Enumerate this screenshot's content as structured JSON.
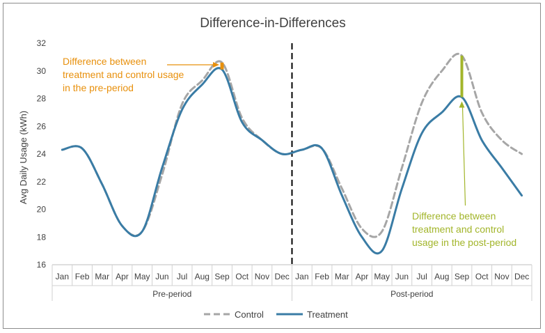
{
  "chart_data": {
    "type": "line",
    "title": "Difference-in-Differences",
    "ylabel": "Avg Daily Usage (kWh)",
    "xlabel": "",
    "ylim": [
      16,
      32
    ],
    "yticks": [
      16,
      18,
      20,
      22,
      24,
      26,
      28,
      30,
      32
    ],
    "categories": [
      "Jan",
      "Feb",
      "Mar",
      "Apr",
      "May",
      "Jun",
      "Jul",
      "Aug",
      "Sep",
      "Oct",
      "Nov",
      "Dec",
      "Jan",
      "Feb",
      "Mar",
      "Apr",
      "May",
      "Jun",
      "Jul",
      "Aug",
      "Sep",
      "Oct",
      "Nov",
      "Dec"
    ],
    "groups": [
      {
        "label": "Pre-period",
        "start": 0,
        "end": 11
      },
      {
        "label": "Post-period",
        "start": 12,
        "end": 23
      }
    ],
    "series": [
      {
        "name": "Control",
        "style": "dashed",
        "color": "#a6a6a6",
        "values": [
          24.3,
          24.4,
          21.8,
          18.8,
          18.4,
          22.5,
          27.6,
          29.3,
          30.6,
          26.6,
          25.0,
          24.0,
          24.3,
          24.4,
          21.5,
          18.6,
          18.4,
          23.0,
          27.7,
          30.0,
          31.1,
          27.0,
          25.0,
          24.0
        ]
      },
      {
        "name": "Treatment",
        "style": "solid",
        "color": "#3a7ca5",
        "values": [
          24.3,
          24.4,
          21.8,
          18.8,
          18.4,
          23.0,
          27.2,
          29.0,
          30.1,
          26.3,
          25.0,
          24.0,
          24.3,
          24.4,
          21.0,
          18.0,
          17.0,
          21.5,
          25.5,
          27.0,
          28.1,
          25.0,
          23.0,
          21.0
        ]
      }
    ],
    "divider_after_index": 11,
    "annotations": [
      {
        "text": [
          "Difference between",
          "treatment and control usage",
          "in the pre-period"
        ],
        "color": "#e8900c",
        "index": 8,
        "from": 30.1,
        "to": 30.6
      },
      {
        "text": [
          "Difference between",
          "treatment and control",
          "usage in the post-period"
        ],
        "color": "#a2b52a",
        "index": 20,
        "from": 28.1,
        "to": 31.1
      }
    ],
    "legend_position": "bottom",
    "grid": false
  }
}
